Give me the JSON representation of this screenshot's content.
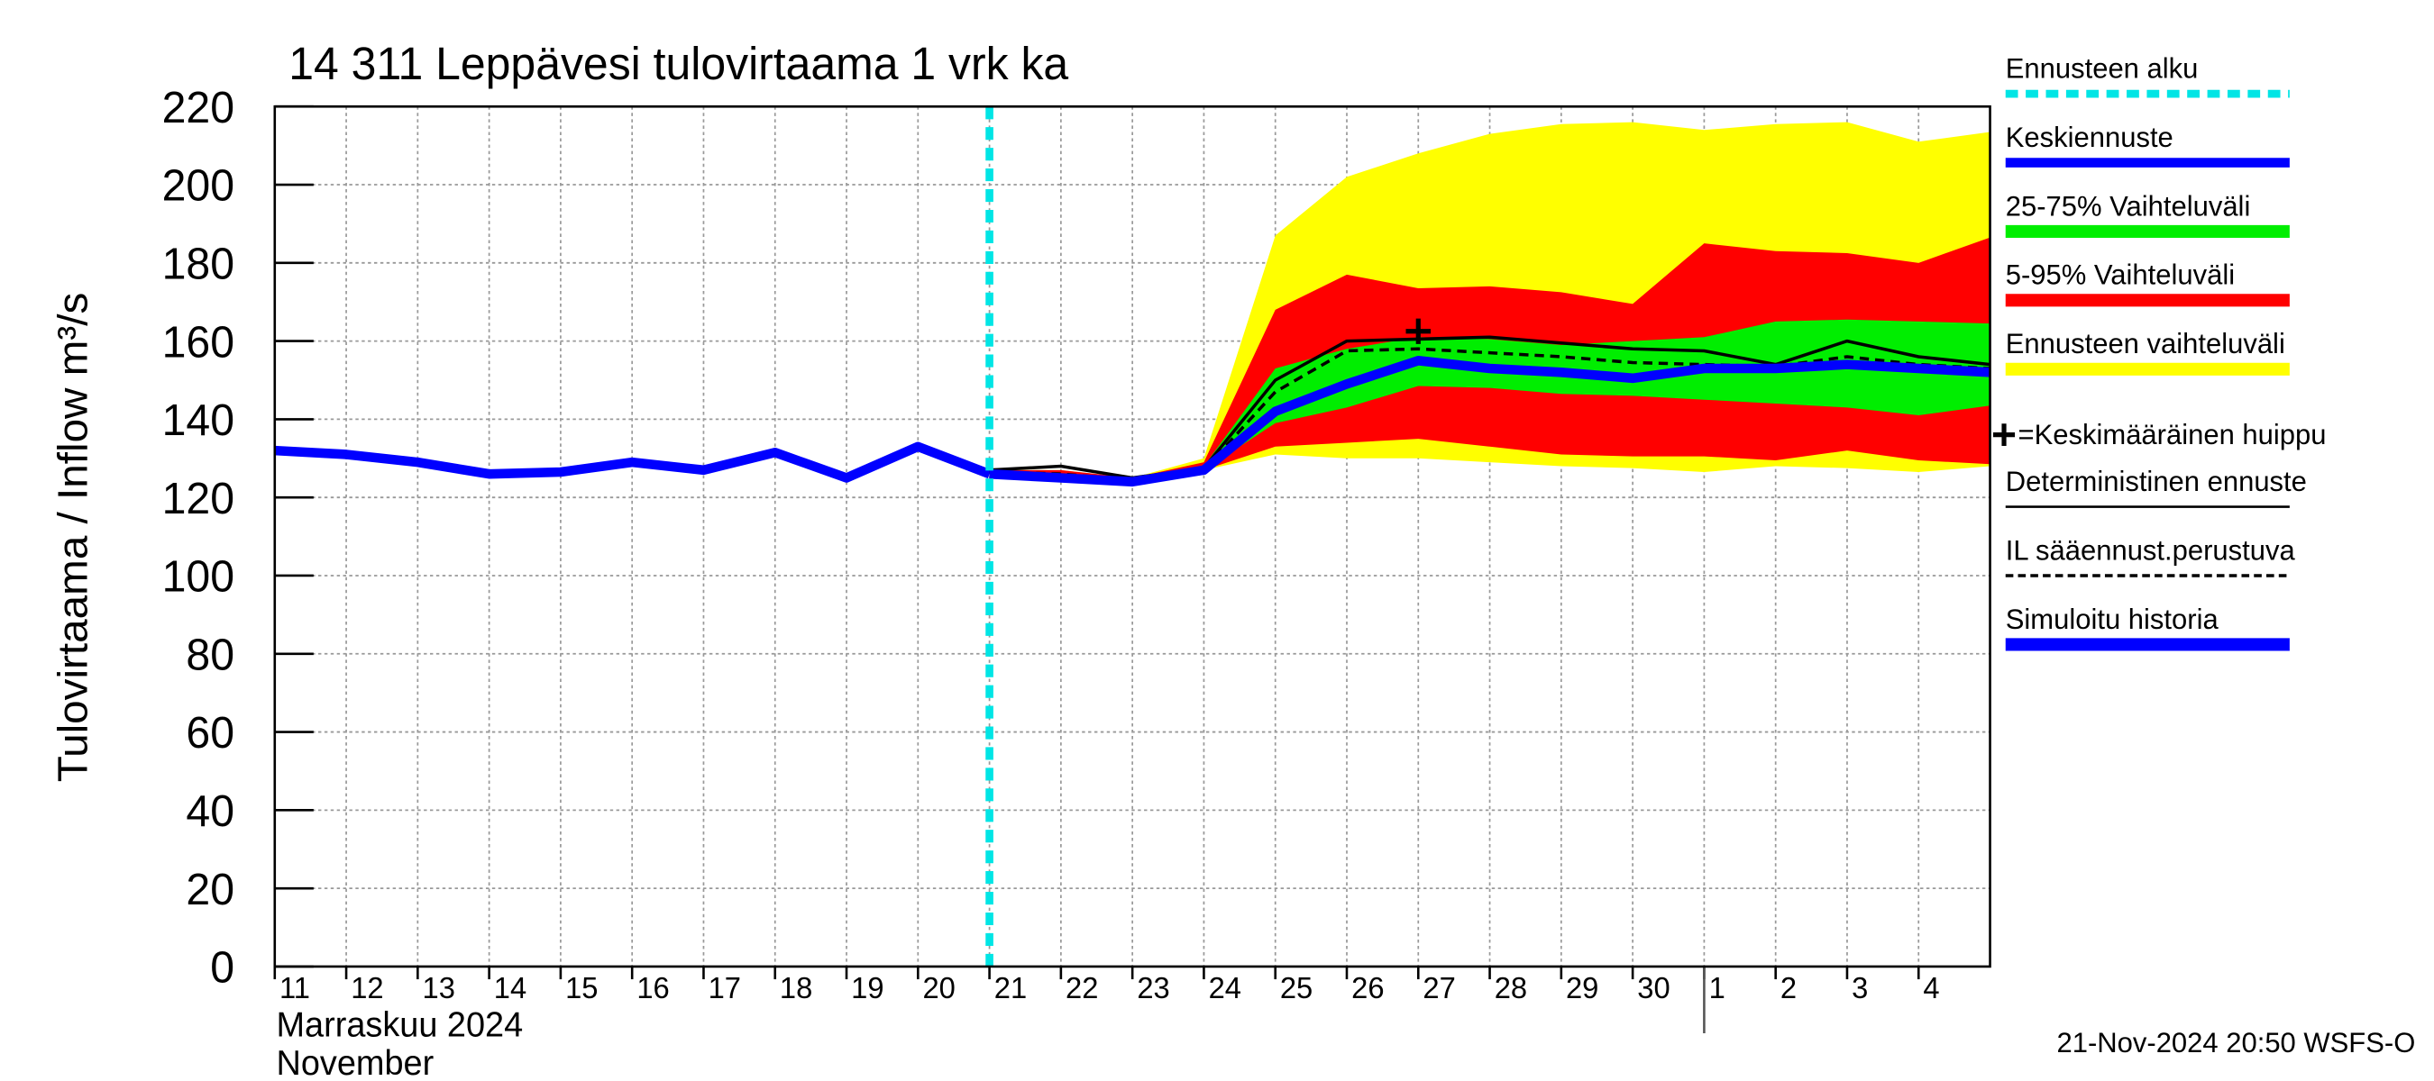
{
  "chart_data": {
    "type": "line",
    "title": "14 311 Leppävesi tulovirtaama 1 vrk ka",
    "y_label": "Tulovirtaama / Inflow    m³/s",
    "x_sublabels": [
      "Marraskuu 2024",
      "November"
    ],
    "timestamp": "21-Nov-2024 20:50 WSFS-O",
    "grid": true,
    "ylim": [
      0,
      220
    ],
    "yticks": [
      0,
      20,
      40,
      60,
      80,
      100,
      120,
      140,
      160,
      180,
      200,
      220
    ],
    "xlim": [
      "2024-11-11",
      "2024-12-05"
    ],
    "xticks": [
      {
        "value": "2024-11-11",
        "label": "11"
      },
      {
        "value": "2024-11-12",
        "label": "12"
      },
      {
        "value": "2024-11-13",
        "label": "13"
      },
      {
        "value": "2024-11-14",
        "label": "14"
      },
      {
        "value": "2024-11-15",
        "label": "15"
      },
      {
        "value": "2024-11-16",
        "label": "16"
      },
      {
        "value": "2024-11-17",
        "label": "17"
      },
      {
        "value": "2024-11-18",
        "label": "18"
      },
      {
        "value": "2024-11-19",
        "label": "19"
      },
      {
        "value": "2024-11-20",
        "label": "20"
      },
      {
        "value": "2024-11-21",
        "label": "21"
      },
      {
        "value": "2024-11-22",
        "label": "22"
      },
      {
        "value": "2024-11-23",
        "label": "23"
      },
      {
        "value": "2024-11-24",
        "label": "24"
      },
      {
        "value": "2024-11-25",
        "label": "25"
      },
      {
        "value": "2024-11-26",
        "label": "26"
      },
      {
        "value": "2024-11-27",
        "label": "27"
      },
      {
        "value": "2024-11-28",
        "label": "28"
      },
      {
        "value": "2024-11-29",
        "label": "29"
      },
      {
        "value": "2024-11-30",
        "label": "30"
      },
      {
        "value": "2024-12-01",
        "label": "1"
      },
      {
        "value": "2024-12-02",
        "label": "2"
      },
      {
        "value": "2024-12-03",
        "label": "3"
      },
      {
        "value": "2024-12-04",
        "label": "4"
      }
    ],
    "month_boundary": "2024-12-01",
    "x": [
      "2024-11-11",
      "2024-11-12",
      "2024-11-13",
      "2024-11-14",
      "2024-11-15",
      "2024-11-16",
      "2024-11-17",
      "2024-11-18",
      "2024-11-19",
      "2024-11-20",
      "2024-11-21",
      "2024-11-22",
      "2024-11-23",
      "2024-11-24",
      "2024-11-25",
      "2024-11-26",
      "2024-11-27",
      "2024-11-28",
      "2024-11-29",
      "2024-11-30",
      "2024-12-01",
      "2024-12-02",
      "2024-12-03",
      "2024-12-04",
      "2024-12-05"
    ],
    "forecast_start": {
      "name": "Ennusteen alku",
      "x": "2024-11-21",
      "color": "#00e5e5"
    },
    "bands": [
      {
        "name": "Ennusteen vaihteluväli",
        "color": "#ffff00",
        "lower": [
          null,
          null,
          null,
          null,
          null,
          null,
          null,
          null,
          null,
          null,
          126,
          125,
          124,
          127,
          131,
          130,
          130,
          129,
          128,
          127.5,
          126.5,
          128,
          127.5,
          126.5,
          128
        ],
        "upper": [
          null,
          null,
          null,
          null,
          null,
          null,
          null,
          null,
          null,
          null,
          127,
          127,
          125,
          130,
          187,
          202,
          208,
          213,
          215.5,
          216,
          214,
          215.5,
          216,
          211,
          213.5
        ]
      },
      {
        "name": "5-95% Vaihteluväli",
        "color": "#ff0000",
        "lower": [
          null,
          null,
          null,
          null,
          null,
          null,
          null,
          null,
          null,
          null,
          126,
          125,
          124,
          127,
          133,
          134,
          135,
          133,
          131,
          130.5,
          130.5,
          129.5,
          132,
          129.5,
          128.5
        ],
        "upper": [
          null,
          null,
          null,
          null,
          null,
          null,
          null,
          null,
          null,
          null,
          127,
          127,
          125,
          129,
          168,
          177,
          173.5,
          174,
          172.5,
          169.5,
          185,
          183,
          182.5,
          180,
          186.5
        ]
      },
      {
        "name": "25-75% Vaihteluväli",
        "color": "#00ee00",
        "lower": [
          null,
          null,
          null,
          null,
          null,
          null,
          null,
          null,
          null,
          null,
          126,
          125,
          124,
          127,
          139,
          143,
          148.5,
          148,
          146.5,
          146,
          145,
          144,
          143,
          141,
          143.5
        ],
        "upper": [
          null,
          null,
          null,
          null,
          null,
          null,
          null,
          null,
          null,
          null,
          126.5,
          126,
          124.5,
          128,
          153,
          158,
          161,
          160.5,
          159,
          160,
          161,
          165,
          165.5,
          165,
          164.5
        ]
      }
    ],
    "series": [
      {
        "name": "Keskiennuste",
        "color": "#0000ff",
        "values": [
          null,
          null,
          null,
          null,
          null,
          null,
          null,
          null,
          null,
          null,
          126,
          125,
          124,
          127,
          142,
          149,
          155,
          153,
          152,
          150.5,
          153,
          153,
          154,
          153,
          152
        ]
      },
      {
        "name": "Deterministinen ennuste",
        "color": "#000000",
        "values": [
          null,
          null,
          null,
          null,
          null,
          null,
          null,
          null,
          null,
          null,
          127,
          128,
          125,
          127.5,
          150,
          160,
          160.5,
          161,
          159.5,
          158,
          157.5,
          154,
          160,
          156,
          154
        ]
      },
      {
        "name": "IL sääennust.perustuva",
        "color": "#000000",
        "dashed": true,
        "values": [
          null,
          null,
          null,
          null,
          null,
          null,
          null,
          null,
          null,
          null,
          126.5,
          126,
          124.5,
          127,
          147,
          157.5,
          158,
          157,
          156,
          154.5,
          154,
          153.5,
          156,
          154,
          153
        ]
      },
      {
        "name": "Simuloitu historia",
        "color": "#0000ff",
        "values": [
          132,
          131,
          129,
          126,
          126.5,
          129,
          127,
          131.5,
          125,
          133,
          126,
          null,
          null,
          null,
          null,
          null,
          null,
          null,
          null,
          null,
          null,
          null,
          null,
          null,
          null
        ]
      }
    ],
    "peak": {
      "name": "=Keskimääräinen huippu",
      "x": "2024-11-27",
      "y": 162.5
    }
  }
}
